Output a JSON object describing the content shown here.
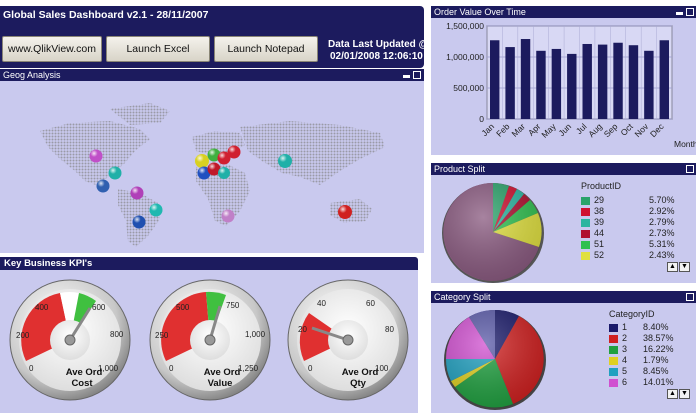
{
  "title_bar": {
    "title": "Global Sales Dashboard v2.1 - 28/11/2007"
  },
  "buttons": {
    "qlikview": "www.QlikView.com",
    "excel": "Launch Excel",
    "notepad": "Launch Notepad"
  },
  "last_updated": {
    "line1": "Data Last Updated @",
    "line2": "02/01/2008 12:06:10"
  },
  "geog": {
    "title": "Geog Analysis"
  },
  "kpi": {
    "title": "Key Business KPI's",
    "gauges": [
      {
        "label1": "Ave Ord",
        "label2": "Cost",
        "ticks": [
          "0",
          "200",
          "400",
          "600",
          "800",
          "1,000"
        ]
      },
      {
        "label1": "Ave Ord",
        "label2": "Value",
        "ticks": [
          "0",
          "250",
          "500",
          "750",
          "1,000",
          "1,250"
        ]
      },
      {
        "label1": "Ave Ord",
        "label2": "Qty",
        "ticks": [
          "0",
          "20",
          "40",
          "60",
          "80",
          "100"
        ]
      }
    ]
  },
  "order_value": {
    "title": "Order Value Over Time",
    "axis_extra_label": "Month"
  },
  "product_split": {
    "title": "Product Split",
    "legend_title": "ProductID",
    "items": [
      {
        "id": "29",
        "pct": "5.70%",
        "color": "#2aa36a"
      },
      {
        "id": "38",
        "pct": "2.92%",
        "color": "#d01030"
      },
      {
        "id": "39",
        "pct": "2.79%",
        "color": "#2bb5a0"
      },
      {
        "id": "44",
        "pct": "2.73%",
        "color": "#b01030"
      },
      {
        "id": "51",
        "pct": "5.31%",
        "color": "#30c050"
      },
      {
        "id": "52",
        "pct": "2.43%",
        "color": "#e0e040"
      }
    ]
  },
  "category_split": {
    "title": "Category Split",
    "legend_title": "CategoryID",
    "items": [
      {
        "id": "1",
        "pct": "8.40%",
        "color": "#1a1a6a"
      },
      {
        "id": "2",
        "pct": "38.57%",
        "color": "#d02020"
      },
      {
        "id": "3",
        "pct": "16.22%",
        "color": "#20a040"
      },
      {
        "id": "4",
        "pct": "1.79%",
        "color": "#e0d020"
      },
      {
        "id": "5",
        "pct": "8.45%",
        "color": "#20a0c0"
      },
      {
        "id": "6",
        "pct": "14.01%",
        "color": "#d050d0"
      }
    ]
  },
  "chart_data": [
    {
      "type": "bar",
      "title": "Order Value Over Time",
      "categories": [
        "Jan",
        "Feb",
        "Mar",
        "Apr",
        "May",
        "Jun",
        "Jul",
        "Aug",
        "Sep",
        "Oct",
        "Nov",
        "Dec"
      ],
      "values": [
        1270000,
        1160000,
        1290000,
        1100000,
        1130000,
        1050000,
        1210000,
        1200000,
        1230000,
        1190000,
        1100000,
        1270000
      ],
      "y_ticks": [
        "1,500,000",
        "1,000,000",
        "500,000",
        "0"
      ],
      "ylim": [
        0,
        1500000
      ],
      "grid": true,
      "xlabel": "Month"
    },
    {
      "type": "pie",
      "title": "Product Split",
      "labels": [
        "29",
        "38",
        "39",
        "44",
        "51",
        "52"
      ],
      "values": [
        5.7,
        2.92,
        2.79,
        2.73,
        5.31,
        2.43
      ]
    },
    {
      "type": "pie",
      "title": "Category Split",
      "labels": [
        "1",
        "2",
        "3",
        "4",
        "5",
        "6"
      ],
      "values": [
        8.4,
        38.57,
        16.22,
        1.79,
        8.45,
        14.01
      ]
    }
  ]
}
